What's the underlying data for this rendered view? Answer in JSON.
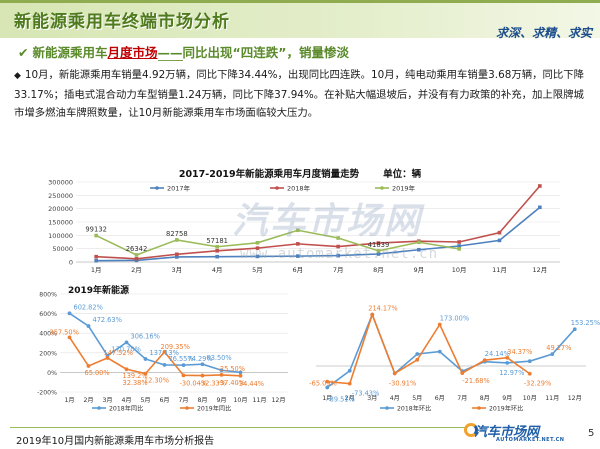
{
  "header": {
    "title": "新能源乘用车终端市场分析",
    "motto": "求深、求精、求实"
  },
  "subtitle": {
    "prefix": "新能源乘用车",
    "highlight": "月度市场",
    "sep": "——",
    "suffix": "同比出现“四连跌”，销量惨淡"
  },
  "paragraph": "10月，新能源乘用车销量4.92万辆，同比下降34.44%，出现同比四连跌。10月，纯电动乘用车销量3.68万辆，同比下降33.17%；插电式混合动力车型销量1.24万辆，同比下降37.94%。在补贴大幅退坡后，并没有有力政策的补充，加上限牌城市增多燃油车牌照数量，让10月新能源乘用车市场面临较大压力。",
  "main_chart_title": "2017-2019年新能源乘用车月度销量走势",
  "main_chart_unit": "单位：辆",
  "small_chart_title": "2019年新能源",
  "watermark": {
    "brand": "汽车市场网",
    "url": "www.automarket.net.cn"
  },
  "footer": {
    "text": "2019年10月国内新能源乘用车市场分析报告",
    "logo": "汽车市场网",
    "logo_sub": "AUTOMARKET.NET.CN",
    "page": "5"
  },
  "colors": {
    "s2017": "#4e81bd",
    "s2018": "#c0504d",
    "s2019": "#9bbb59",
    "yoy2018": "#5b9bd5",
    "yoy2019": "#ed7d31"
  },
  "chart_data": [
    {
      "type": "line",
      "categories": [
        "1月",
        "2月",
        "3月",
        "4月",
        "5月",
        "6月",
        "7月",
        "8月",
        "9月",
        "10月",
        "11月",
        "12月"
      ],
      "ylim": [
        0,
        300000
      ],
      "yticks": [
        "0",
        "50000",
        "100000",
        "150000",
        "200000",
        "250000",
        "300000"
      ],
      "series": [
        {
          "name": "2017年",
          "values": [
            5000,
            6000,
            19000,
            20000,
            21000,
            22000,
            24000,
            30000,
            46000,
            60000,
            81000,
            205000
          ]
        },
        {
          "name": "2018年",
          "values": [
            20000,
            12000,
            29000,
            42000,
            52000,
            68000,
            58000,
            71000,
            78000,
            75000,
            110000,
            285000
          ]
        },
        {
          "name": "2019年",
          "values": [
            99132,
            26342,
            82758,
            57181,
            72000,
            119000,
            90000,
            41839,
            74000,
            49200,
            null,
            null
          ]
        }
      ],
      "data_labels": [
        {
          "series": "2019年",
          "x": "1月",
          "text": "99132"
        },
        {
          "series": "2019年",
          "x": "2月",
          "text": "26342"
        },
        {
          "series": "2019年",
          "x": "3月",
          "text": "82758"
        },
        {
          "series": "2019年",
          "x": "4月",
          "text": "57181"
        },
        {
          "series": "2019年",
          "x": "8月",
          "text": "41839"
        }
      ],
      "legend_position": "top"
    },
    {
      "type": "line",
      "categories": [
        "1月",
        "2月",
        "3月",
        "4月",
        "5月",
        "6月",
        "7月",
        "8月",
        "9月",
        "10月",
        "11月",
        "12月"
      ],
      "ylim": [
        -200,
        800
      ],
      "yticks": [
        "-200%",
        "0%",
        "200%",
        "400%",
        "600%",
        "800%"
      ],
      "series": [
        {
          "name": "2018年同比",
          "values": [
            602.82,
            472.63,
            170.7,
            306.16,
            137.13,
            76.55,
            74.29,
            83.5,
            22,
            0,
            null,
            null
          ]
        },
        {
          "name": "2019年同比",
          "values": [
            357.5,
            65,
            147.52,
            32.38,
            -12.3,
            209.35,
            -30.04,
            -32.33,
            -25.5,
            -34.44,
            null,
            null
          ]
        }
      ],
      "data_labels": [
        "602.82%",
        "472.63%",
        "170.70%",
        "306.16%",
        "137.13%",
        "76.55%",
        "74.29%",
        "83.50%",
        "357.50%",
        "65.00%",
        "147.52%",
        "139.2%",
        "32.38%",
        "-12.30%",
        "209.35%",
        "-30.04%",
        "-32.33%",
        "-25.50%",
        "-37.40%",
        "-34.44%"
      ],
      "legend_position": "bottom"
    },
    {
      "type": "line",
      "categories": [
        "1月",
        "2月",
        "3月",
        "4月",
        "5月",
        "6月",
        "7月",
        "8月",
        "9月",
        "10月",
        "11月",
        "12月"
      ],
      "ylim": [
        -100,
        300
      ],
      "series": [
        {
          "name": "2018年环比",
          "values": [
            -89.51,
            -20,
            214.17,
            -30.91,
            50,
            60,
            -21.68,
            18,
            12.97,
            20,
            49.27,
            153.25
          ]
        },
        {
          "name": "2019年环比",
          "values": [
            -65.09,
            -73.43,
            214.17,
            -30.91,
            25.88,
            173,
            -29.48,
            24.14,
            34.37,
            -32.29,
            null,
            null
          ]
        }
      ],
      "data_labels": [
        "-65.09%",
        "-89.51%",
        "214.17%",
        "-73.43%",
        "-30.91%",
        "173.00%",
        "-21.68%",
        "24.14%",
        "34.37%",
        "12.97%",
        "49.27%",
        "153.25%",
        "-32.29%"
      ],
      "legend_position": "bottom"
    }
  ]
}
